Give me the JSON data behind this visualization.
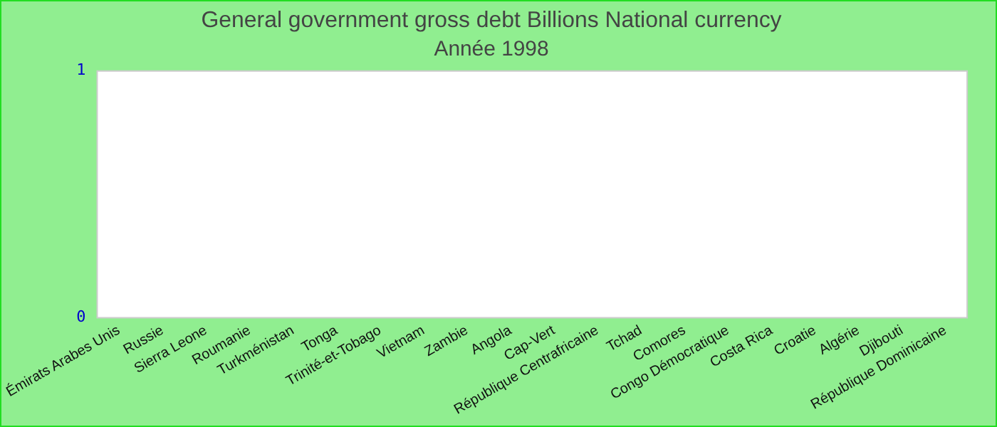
{
  "chart_data": {
    "type": "bar",
    "title": "General government gross debt Billions National currency",
    "subtitle": "Année 1998",
    "categories": [
      "Émirats Arabes Unis",
      "Russie",
      "Sierra Leone",
      "Roumanie",
      "Turkménistan",
      "Tonga",
      "Trinité-et-Tobago",
      "Vietnam",
      "Zambie",
      "Angola",
      "Cap-Vert",
      "République Centrafricaine",
      "Tchad",
      "Comores",
      "Congo Démocratique",
      "Costa Rica",
      "Croatie",
      "Algérie",
      "Djibouti",
      "République Dominicaine"
    ],
    "values": [
      0,
      0,
      0,
      0,
      0,
      0,
      0,
      0,
      0,
      0,
      0,
      0,
      0,
      0,
      0,
      0,
      0,
      0,
      0,
      0
    ],
    "ylim": [
      0,
      1
    ],
    "yticks": [
      0,
      1
    ],
    "grid": false,
    "legend": false
  }
}
